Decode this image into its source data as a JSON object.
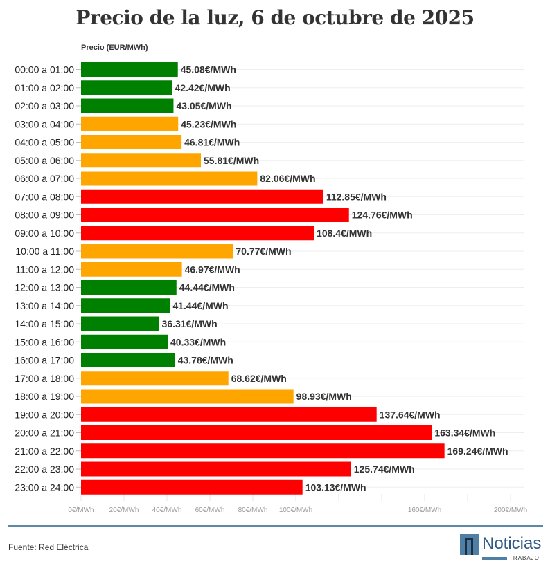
{
  "chart_data": {
    "type": "bar",
    "orientation": "horizontal",
    "title": "Precio de la luz, 6 de octubre de 2025",
    "ylabel": "Precio (EUR/MWh)",
    "xlim": [
      0,
      200
    ],
    "grid": true,
    "x_ticks": [
      0,
      20,
      40,
      60,
      80,
      100,
      120,
      140,
      160,
      180,
      200
    ],
    "x_tick_labels": {
      "0": "0€/MWh",
      "20": "20€/MWh",
      "40": "40€/MWh",
      "60": "60€/MWh",
      "80": "80€/MWh",
      "100": "100€/MWh",
      "160": "160€/MWh",
      "200": "200€/MWh"
    },
    "colors": {
      "low": "#008000",
      "mid": "#FFA500",
      "high": "#FF0000"
    },
    "categories": [
      "00:00 a 01:00",
      "01:00 a 02:00",
      "02:00 a 03:00",
      "03:00 a 04:00",
      "04:00 a 05:00",
      "05:00 a 06:00",
      "06:00 a 07:00",
      "07:00 a 08:00",
      "08:00 a 09:00",
      "09:00 a 10:00",
      "10:00 a 11:00",
      "11:00 a 12:00",
      "12:00 a 13:00",
      "13:00 a 14:00",
      "14:00 a 15:00",
      "15:00 a 16:00",
      "16:00 a 17:00",
      "17:00 a 18:00",
      "18:00 a 19:00",
      "19:00 a 20:00",
      "20:00 a 21:00",
      "21:00 a 22:00",
      "22:00 a 23:00",
      "23:00 a 24:00"
    ],
    "values": [
      45.08,
      42.42,
      43.05,
      45.23,
      46.81,
      55.81,
      82.06,
      112.85,
      124.76,
      108.4,
      70.77,
      46.97,
      44.44,
      41.44,
      36.31,
      40.33,
      43.78,
      68.62,
      98.93,
      137.64,
      163.34,
      169.24,
      125.74,
      103.13
    ],
    "levels": [
      "low",
      "low",
      "low",
      "mid",
      "mid",
      "mid",
      "mid",
      "high",
      "high",
      "high",
      "mid",
      "mid",
      "low",
      "low",
      "low",
      "low",
      "low",
      "mid",
      "mid",
      "high",
      "high",
      "high",
      "high",
      "high"
    ],
    "data_labels": [
      "45.08€/MWh",
      "42.42€/MWh",
      "43.05€/MWh",
      "45.23€/MWh",
      "46.81€/MWh",
      "55.81€/MWh",
      "82.06€/MWh",
      "112.85€/MWh",
      "124.76€/MWh",
      "108.4€/MWh",
      "70.77€/MWh",
      "46.97€/MWh",
      "44.44€/MWh",
      "41.44€/MWh",
      "36.31€/MWh",
      "40.33€/MWh",
      "43.78€/MWh",
      "68.62€/MWh",
      "98.93€/MWh",
      "137.64€/MWh",
      "163.34€/MWh",
      "169.24€/MWh",
      "125.74€/MWh",
      "103.13€/MWh"
    ]
  },
  "footer": {
    "source": "Fuente: Red Eléctrica",
    "logo": "Noticias TRABAJO"
  }
}
